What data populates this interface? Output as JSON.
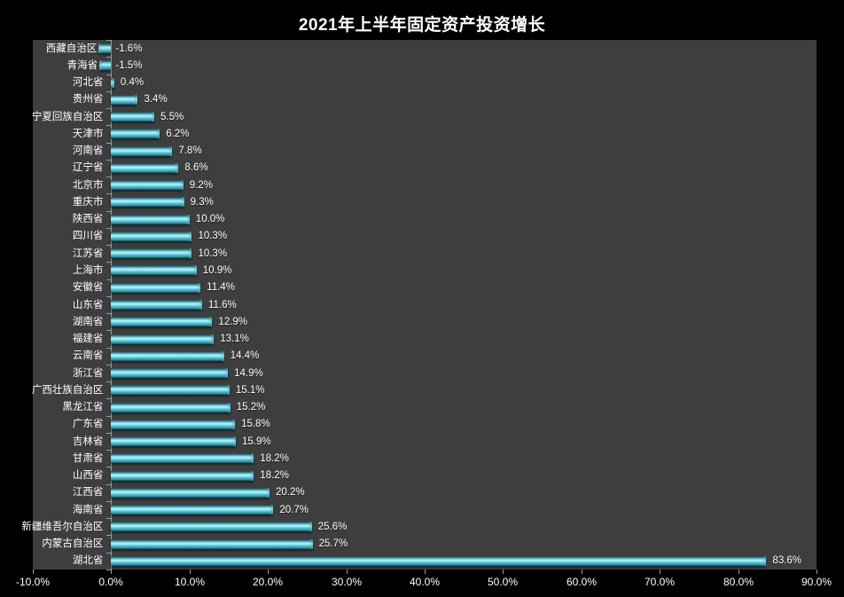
{
  "title": "2021年上半年固定资产投资增长",
  "colors": {
    "page_background": "#000000",
    "plot_background": "#3e3e3e",
    "bar_main": "#45bacd",
    "bar_highlight": "#b9f2f8",
    "bar_dark_edge": "#16424c",
    "axis_line": "#9a9a9a",
    "text": "#ffffff"
  },
  "chart_data": {
    "type": "bar",
    "orientation": "horizontal",
    "title": "2021年上半年固定资产投资增长",
    "xlabel": "",
    "ylabel": "",
    "xlim": [
      -10,
      90
    ],
    "grid": false,
    "legend": false,
    "categories": [
      "西藏自治区",
      "青海省",
      "河北省",
      "贵州省",
      "宁夏回族自治区",
      "天津市",
      "河南省",
      "辽宁省",
      "北京市",
      "重庆市",
      "陕西省",
      "四川省",
      "江苏省",
      "上海市",
      "安徽省",
      "山东省",
      "湖南省",
      "福建省",
      "云南省",
      "浙江省",
      "广西壮族自治区",
      "黑龙江省",
      "广东省",
      "吉林省",
      "甘肃省",
      "山西省",
      "江西省",
      "海南省",
      "新疆维吾尔自治区",
      "内蒙古自治区",
      "湖北省"
    ],
    "values": [
      -1.6,
      -1.5,
      0.4,
      3.4,
      5.5,
      6.2,
      7.8,
      8.6,
      9.2,
      9.3,
      10.0,
      10.3,
      10.3,
      10.9,
      11.4,
      11.6,
      12.9,
      13.1,
      14.4,
      14.9,
      15.1,
      15.2,
      15.8,
      15.9,
      18.2,
      18.2,
      20.2,
      20.7,
      25.6,
      25.7,
      83.6
    ],
    "value_labels": [
      "-1.6%",
      "-1.5%",
      "0.4%",
      "3.4%",
      "5.5%",
      "6.2%",
      "7.8%",
      "8.6%",
      "9.2%",
      "9.3%",
      "10.0%",
      "10.3%",
      "10.3%",
      "10.9%",
      "11.4%",
      "11.6%",
      "12.9%",
      "13.1%",
      "14.4%",
      "14.9%",
      "15.1%",
      "15.2%",
      "15.8%",
      "15.9%",
      "18.2%",
      "18.2%",
      "20.2%",
      "20.7%",
      "25.6%",
      "25.7%",
      "83.6%"
    ],
    "x_tick_values": [
      -10,
      0,
      10,
      20,
      30,
      40,
      50,
      60,
      70,
      80,
      90
    ],
    "x_tick_labels": [
      "-10.0%",
      "0.0%",
      "10.0%",
      "20.0%",
      "30.0%",
      "40.0%",
      "50.0%",
      "60.0%",
      "70.0%",
      "80.0%",
      "90.0%"
    ]
  }
}
